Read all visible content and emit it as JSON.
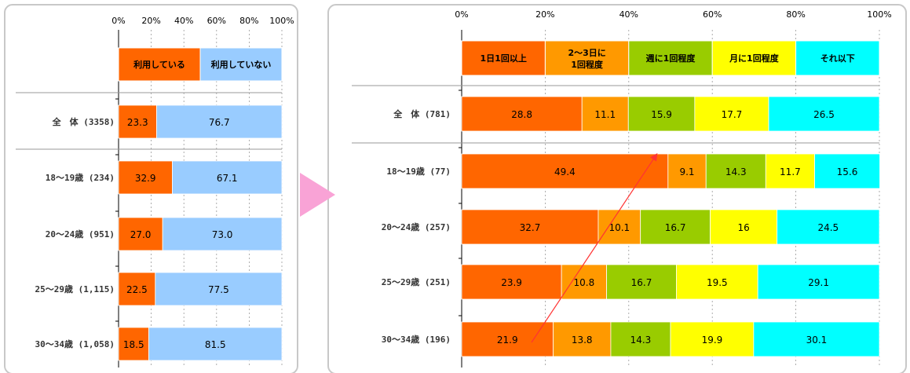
{
  "chart_data": [
    {
      "type": "bar",
      "orientation": "horizontal",
      "stacked": "percent",
      "x_ticks": [
        "0%",
        "20%",
        "40%",
        "60%",
        "80%",
        "100%"
      ],
      "xlim": [
        0,
        100
      ],
      "legend": [
        "利用している",
        "利用していない"
      ],
      "colors": [
        "#ff6600",
        "#99ccff"
      ],
      "categories": [
        "全　体 (3358)",
        "18～19歳 (234)",
        "20～24歳 (951)",
        "25～29歳 (1,115)",
        "30～34歳 (1,058)"
      ],
      "series": [
        {
          "name": "利用している",
          "values": [
            23.3,
            32.9,
            27.0,
            22.5,
            18.5
          ]
        },
        {
          "name": "利用していない",
          "values": [
            76.7,
            67.1,
            73.0,
            77.5,
            81.5
          ]
        }
      ],
      "value_labels": [
        [
          "23.3",
          "76.7"
        ],
        [
          "32.9",
          "67.1"
        ],
        [
          "27.0",
          "73.0"
        ],
        [
          "22.5",
          "77.5"
        ],
        [
          "18.5",
          "81.5"
        ]
      ]
    },
    {
      "type": "bar",
      "orientation": "horizontal",
      "stacked": "percent",
      "x_ticks": [
        "0%",
        "20%",
        "40%",
        "60%",
        "80%",
        "100%"
      ],
      "xlim": [
        0,
        100
      ],
      "legend": [
        "1日1回以上",
        "2～3日に\n1回程度",
        "週に1回程度",
        "月に1回程度",
        "それ以下"
      ],
      "colors": [
        "#ff6600",
        "#ff9900",
        "#99cc00",
        "#ffff00",
        "#00ffff"
      ],
      "categories": [
        "全　体 (781)",
        "18～19歳 (77)",
        "20～24歳 (257)",
        "25～29歳 (251)",
        "30～34歳 (196)"
      ],
      "series": [
        {
          "name": "1日1回以上",
          "values": [
            28.8,
            49.4,
            32.7,
            23.9,
            21.9
          ]
        },
        {
          "name": "2～3日に1回程度",
          "values": [
            11.1,
            9.1,
            10.1,
            10.8,
            13.8
          ]
        },
        {
          "name": "週に1回程度",
          "values": [
            15.9,
            14.3,
            16.7,
            16.7,
            14.3
          ]
        },
        {
          "name": "月に1回程度",
          "values": [
            17.7,
            11.7,
            16.0,
            19.5,
            19.9
          ]
        },
        {
          "name": "それ以下",
          "values": [
            26.5,
            15.6,
            24.5,
            29.1,
            30.1
          ]
        }
      ],
      "value_labels": [
        [
          "28.8",
          "11.1",
          "15.9",
          "17.7",
          "26.5"
        ],
        [
          "49.4",
          "9.1",
          "14.3",
          "11.7",
          "15.6"
        ],
        [
          "32.7",
          "10.1",
          "16.7",
          "16",
          "24.5"
        ],
        [
          "23.9",
          "10.8",
          "16.7",
          "19.5",
          "29.1"
        ],
        [
          "21.9",
          "13.8",
          "14.3",
          "19.9",
          "30.1"
        ]
      ],
      "annotation": "red arrow from the 30～34歳 1日1回以上 bar up to the 18～19歳 1日1回以上 bar"
    }
  ],
  "colors": {
    "panel_border": "#c8c8c8",
    "connector_arrow": "#f9a3d6",
    "annotation_arrow": "#ff3333"
  }
}
